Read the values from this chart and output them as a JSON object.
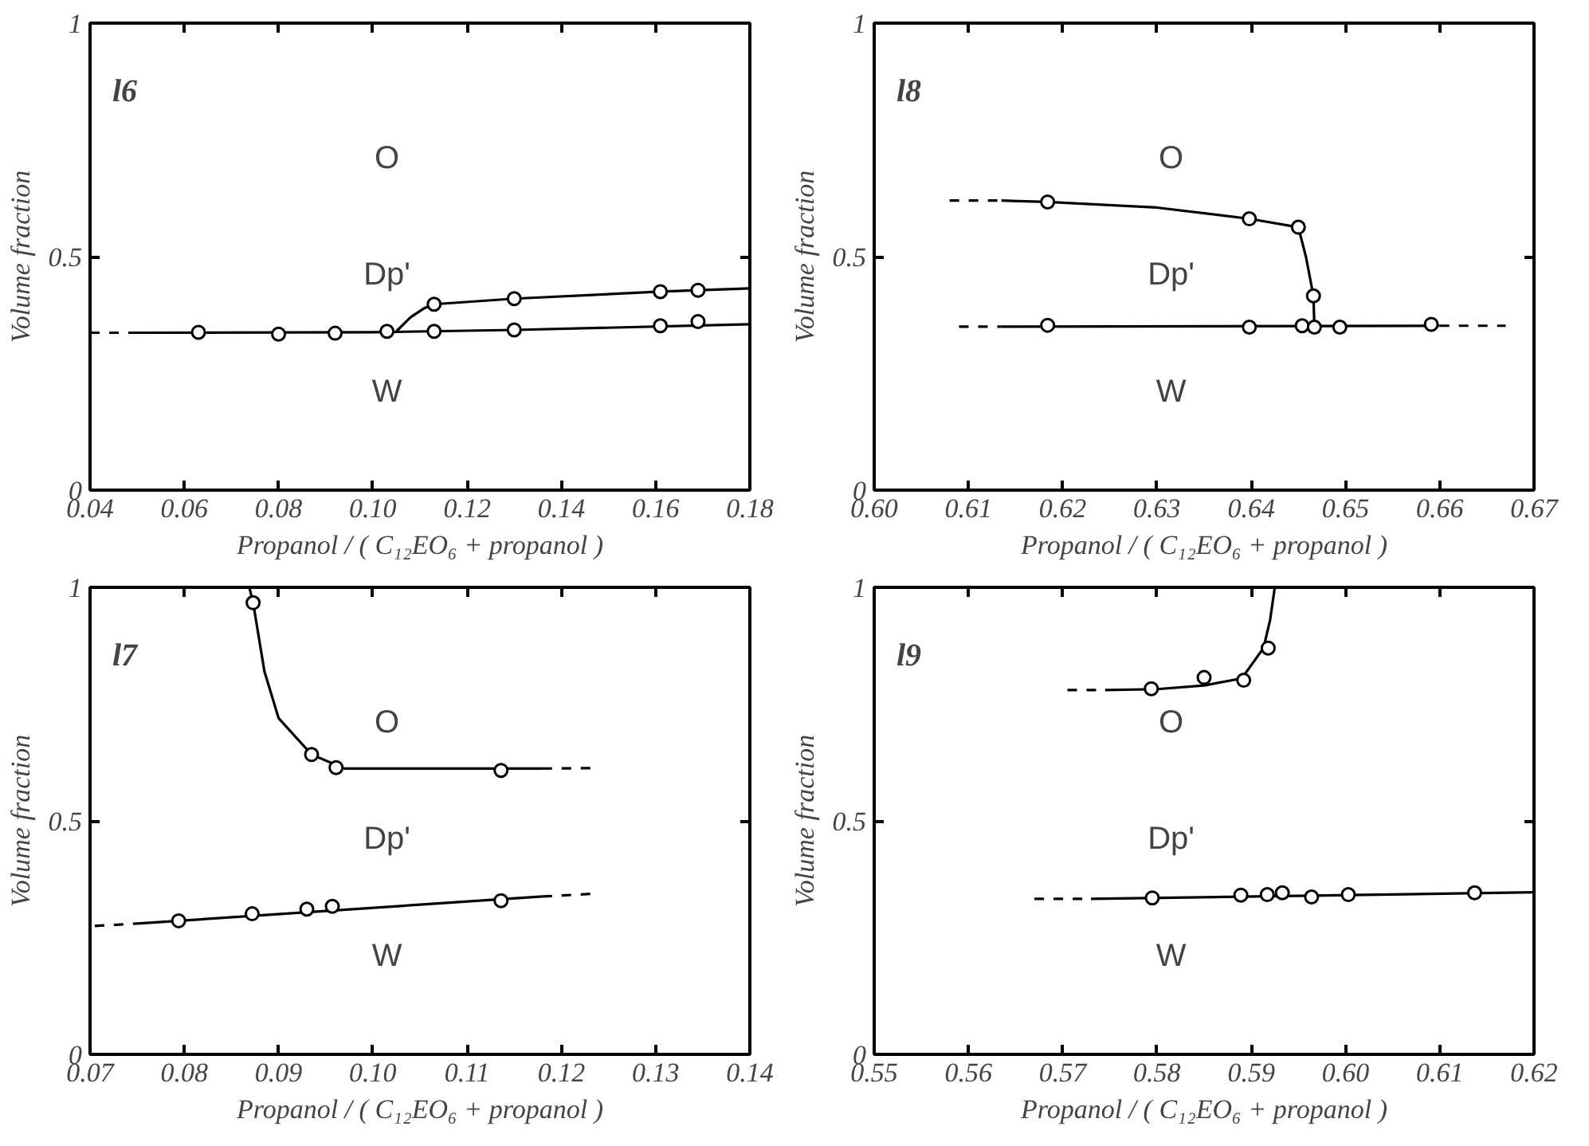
{
  "chart_data": [
    {
      "type": "scatter",
      "title": "l6",
      "xlabel": "Propanol / ( C₁₂EO₆ + propanol )",
      "ylabel": "Volume fraction",
      "xlim": [
        0.04,
        0.18
      ],
      "ylim": [
        0,
        1
      ],
      "xticks": [
        {
          "value": 0.04,
          "label": "0.04"
        },
        {
          "value": 0.06,
          "label": "0.06"
        },
        {
          "value": 0.08,
          "label": "0.08"
        },
        {
          "value": 0.1,
          "label": "0.10"
        },
        {
          "value": 0.12,
          "label": "0.12"
        },
        {
          "value": 0.14,
          "label": "0.14"
        },
        {
          "value": 0.16,
          "label": "0.16"
        },
        {
          "value": 0.18,
          "label": "0.18"
        }
      ],
      "yticks": [
        0,
        0.5,
        1
      ],
      "grid": false,
      "series": [
        {
          "type": "line",
          "color": "#000000",
          "line_style": "dashed",
          "marker": "none",
          "x": [
            0.04,
            0.05
          ],
          "values": [
            0.337,
            0.337
          ]
        },
        {
          "type": "line",
          "color": "#000000",
          "line_style": "solid",
          "marker": "none",
          "x": [
            0.05,
            0.1,
            0.13,
            0.18
          ],
          "values": [
            0.337,
            0.338,
            0.343,
            0.355
          ]
        },
        {
          "type": "line",
          "color": "#000000",
          "line_style": "solid",
          "marker": "none",
          "x": [
            0.105,
            0.108,
            0.111,
            0.113,
            0.13,
            0.161,
            0.18
          ],
          "values": [
            0.34,
            0.37,
            0.39,
            0.398,
            0.41,
            0.425,
            0.432
          ]
        },
        {
          "color": "#000000",
          "marker": "circle",
          "x": [
            0.063,
            0.08,
            0.092,
            0.103,
            0.113,
            0.13,
            0.161,
            0.169
          ],
          "values": [
            0.338,
            0.334,
            0.336,
            0.34,
            0.34,
            0.343,
            0.352,
            0.361
          ]
        },
        {
          "color": "#000000",
          "marker": "circle",
          "x": [
            0.113,
            0.13,
            0.161,
            0.169
          ],
          "values": [
            0.398,
            0.41,
            0.425,
            0.428
          ]
        }
      ],
      "annotations": [
        "O",
        "Dp'",
        "W"
      ]
    },
    {
      "type": "scatter",
      "title": "l8",
      "xlabel": "Propanol / ( C₁₂EO₆ + propanol )",
      "ylabel": "Volume fraction",
      "xlim": [
        0.6,
        0.67
      ],
      "ylim": [
        0,
        1
      ],
      "xticks": [
        {
          "value": 0.6,
          "label": "0.60"
        },
        {
          "value": 0.61,
          "label": "0.61"
        },
        {
          "value": 0.62,
          "label": "0.62"
        },
        {
          "value": 0.63,
          "label": "0.63"
        },
        {
          "value": 0.64,
          "label": "0.64"
        },
        {
          "value": 0.65,
          "label": "0.65"
        },
        {
          "value": 0.66,
          "label": "0.66"
        },
        {
          "value": 0.67,
          "label": "0.67"
        }
      ],
      "yticks": [
        0,
        0.5,
        1
      ],
      "grid": false,
      "series": [
        {
          "type": "line",
          "color": "#000000",
          "line_style": "dashed",
          "marker": "none",
          "x": [
            0.608,
            0.6135
          ],
          "values": [
            0.62,
            0.62
          ]
        },
        {
          "type": "line",
          "color": "#000000",
          "line_style": "solid",
          "marker": "none",
          "x": [
            0.6135,
            0.6184,
            0.63,
            0.6398,
            0.645,
            0.6458,
            0.6466,
            0.6467
          ],
          "values": [
            0.62,
            0.617,
            0.605,
            0.581,
            0.563,
            0.5,
            0.416,
            0.35
          ]
        },
        {
          "type": "line",
          "color": "#000000",
          "line_style": "dashed",
          "marker": "none",
          "x": [
            0.609,
            0.6135
          ],
          "values": [
            0.35,
            0.35
          ]
        },
        {
          "type": "line",
          "color": "#000000",
          "line_style": "solid",
          "marker": "none",
          "x": [
            0.6135,
            0.66
          ],
          "values": [
            0.35,
            0.352
          ]
        },
        {
          "type": "line",
          "color": "#000000",
          "line_style": "dashed",
          "marker": "none",
          "x": [
            0.66,
            0.667
          ],
          "values": [
            0.352,
            0.352
          ]
        },
        {
          "color": "#000000",
          "marker": "circle",
          "x": [
            0.6184,
            0.6398,
            0.645,
            0.6466
          ],
          "values": [
            0.617,
            0.581,
            0.563,
            0.416
          ]
        },
        {
          "color": "#000000",
          "marker": "circle",
          "x": [
            0.6184,
            0.6398,
            0.6454,
            0.6467,
            0.6494,
            0.6591
          ],
          "values": [
            0.353,
            0.349,
            0.352,
            0.349,
            0.349,
            0.355
          ]
        }
      ],
      "annotations": [
        "O",
        "Dp'",
        "W"
      ]
    },
    {
      "type": "scatter",
      "title": "l7",
      "xlabel": "Propanol / ( C₁₂EO₆ + propanol )",
      "ylabel": "Volume fraction",
      "xlim": [
        0.07,
        0.14
      ],
      "ylim": [
        0,
        1
      ],
      "xticks": [
        {
          "value": 0.07,
          "label": "0.07"
        },
        {
          "value": 0.08,
          "label": "0.08"
        },
        {
          "value": 0.09,
          "label": "0.09"
        },
        {
          "value": 0.1,
          "label": "0.10"
        },
        {
          "value": 0.11,
          "label": "0.11"
        },
        {
          "value": 0.12,
          "label": "0.12"
        },
        {
          "value": 0.13,
          "label": "0.13"
        },
        {
          "value": 0.14,
          "label": "0.14"
        }
      ],
      "yticks": [
        0,
        0.5,
        1
      ],
      "grid": false,
      "series": [
        {
          "type": "line",
          "color": "#000000",
          "line_style": "solid",
          "marker": "none",
          "x": [
            0.0869,
            0.0873,
            0.0885,
            0.09,
            0.0935,
            0.097,
            0.118
          ],
          "values": [
            1.0,
            0.967,
            0.82,
            0.72,
            0.642,
            0.612,
            0.612
          ]
        },
        {
          "type": "line",
          "color": "#000000",
          "line_style": "dashed",
          "marker": "none",
          "x": [
            0.118,
            0.1235
          ],
          "values": [
            0.612,
            0.613
          ]
        },
        {
          "type": "line",
          "color": "#000000",
          "line_style": "dashed",
          "marker": "none",
          "x": [
            0.0705,
            0.075
          ],
          "values": [
            0.275,
            0.28
          ]
        },
        {
          "type": "line",
          "color": "#000000",
          "line_style": "solid",
          "marker": "none",
          "x": [
            0.075,
            0.118
          ],
          "values": [
            0.28,
            0.338
          ]
        },
        {
          "type": "line",
          "color": "#000000",
          "line_style": "dashed",
          "marker": "none",
          "x": [
            0.118,
            0.1235
          ],
          "values": [
            0.338,
            0.344
          ]
        },
        {
          "color": "#000000",
          "marker": "circle",
          "x": [
            0.0873,
            0.0935,
            0.0961,
            0.1136
          ],
          "values": [
            0.967,
            0.642,
            0.614,
            0.608
          ]
        },
        {
          "color": "#000000",
          "marker": "circle",
          "x": [
            0.0794,
            0.0872,
            0.093,
            0.0957,
            0.1136
          ],
          "values": [
            0.286,
            0.301,
            0.311,
            0.317,
            0.329
          ]
        }
      ],
      "annotations": [
        "O",
        "Dp'",
        "W"
      ]
    },
    {
      "type": "scatter",
      "title": "l9",
      "xlabel": "Propanol / ( C₁₂EO₆ + propanol )",
      "ylabel": "Volume fraction",
      "xlim": [
        0.55,
        0.62
      ],
      "ylim": [
        0,
        1
      ],
      "xticks": [
        {
          "value": 0.55,
          "label": "0.55"
        },
        {
          "value": 0.56,
          "label": "0.56"
        },
        {
          "value": 0.57,
          "label": "0.57"
        },
        {
          "value": 0.58,
          "label": "0.58"
        },
        {
          "value": 0.59,
          "label": "0.59"
        },
        {
          "value": 0.6,
          "label": "0.60"
        },
        {
          "value": 0.61,
          "label": "0.61"
        },
        {
          "value": 0.62,
          "label": "0.62"
        }
      ],
      "yticks": [
        0,
        0.5,
        1
      ],
      "grid": false,
      "series": [
        {
          "type": "line",
          "color": "#000000",
          "line_style": "dashed",
          "marker": "none",
          "x": [
            0.5705,
            0.5745
          ],
          "values": [
            0.78,
            0.78
          ]
        },
        {
          "type": "line",
          "color": "#000000",
          "line_style": "solid",
          "marker": "none",
          "x": [
            0.5745,
            0.58,
            0.585,
            0.589,
            0.5913,
            0.592,
            0.5925
          ],
          "values": [
            0.78,
            0.782,
            0.79,
            0.805,
            0.87,
            0.93,
            1.0
          ]
        },
        {
          "type": "line",
          "color": "#000000",
          "line_style": "dashed",
          "marker": "none",
          "x": [
            0.567,
            0.573
          ],
          "values": [
            0.333,
            0.333
          ]
        },
        {
          "type": "line",
          "color": "#000000",
          "line_style": "solid",
          "marker": "none",
          "x": [
            0.573,
            0.62
          ],
          "values": [
            0.333,
            0.347
          ]
        },
        {
          "color": "#000000",
          "marker": "circle",
          "x": [
            0.5794,
            0.585,
            0.5892,
            0.5918
          ],
          "values": [
            0.783,
            0.807,
            0.801,
            0.87
          ]
        },
        {
          "color": "#000000",
          "marker": "circle",
          "x": [
            0.5795,
            0.5889,
            0.5917,
            0.5933,
            0.5964,
            0.6003,
            0.6137
          ],
          "values": [
            0.335,
            0.341,
            0.342,
            0.346,
            0.337,
            0.342,
            0.346
          ]
        }
      ],
      "annotations": [
        "O",
        "Dp'",
        "W"
      ]
    }
  ]
}
